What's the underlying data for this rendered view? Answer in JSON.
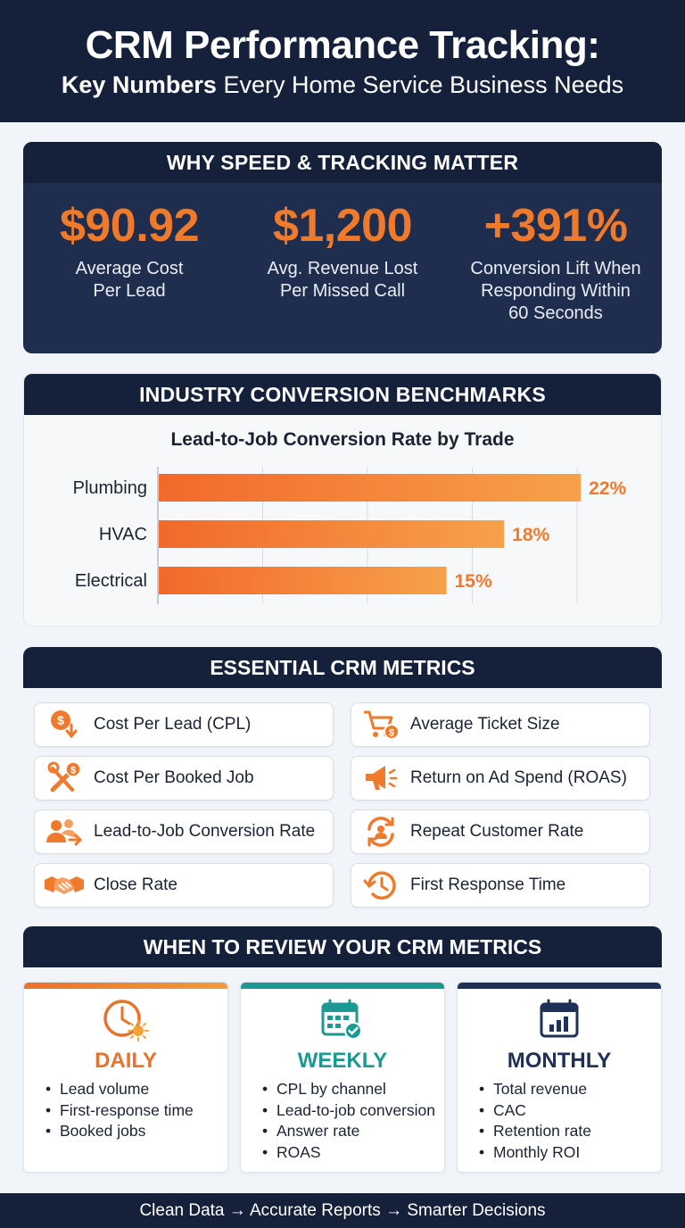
{
  "header": {
    "title": "CRM Performance Tracking:",
    "subtitle_bold": "Key Numbers",
    "subtitle_rest": " Every Home Service Business Needs"
  },
  "speed_section": {
    "title": "WHY SPEED & TRACKING MATTER",
    "stats": [
      {
        "value": "$90.92",
        "label_line1": "Average Cost",
        "label_line2": "Per Lead",
        "label_line3": ""
      },
      {
        "value": "$1,200",
        "label_line1": "Avg. Revenue Lost",
        "label_line2": "Per Missed Call",
        "label_line3": ""
      },
      {
        "value": "+391%",
        "label_line1": "Conversion Lift When",
        "label_line2": "Responding Within",
        "label_line3": "60 Seconds"
      }
    ]
  },
  "benchmark_section": {
    "title": "INDUSTRY CONVERSION BENCHMARKS"
  },
  "chart_data": {
    "type": "bar",
    "orientation": "horizontal",
    "title": "Lead-to-Job Conversion Rate by Trade",
    "categories": [
      "Plumbing",
      "HVAC",
      "Electrical"
    ],
    "values": [
      22,
      18,
      15
    ],
    "value_labels": [
      "22%",
      "18%",
      "15%"
    ],
    "unit": "%",
    "xlim": [
      0,
      25
    ],
    "grid": true,
    "bar_color": "#f07a2b"
  },
  "metrics_section": {
    "title": "ESSENTIAL CRM METRICS",
    "items": [
      {
        "label": "Cost Per Lead (CPL)",
        "icon": "dollar-down-icon"
      },
      {
        "label": "Average Ticket Size",
        "icon": "cart-dollar-icon"
      },
      {
        "label": "Cost Per Booked Job",
        "icon": "tools-dollar-icon"
      },
      {
        "label": "Return on Ad Spend (ROAS)",
        "icon": "megaphone-icon"
      },
      {
        "label": "Lead-to-Job Conversion Rate",
        "icon": "people-arrow-icon"
      },
      {
        "label": "Repeat Customer Rate",
        "icon": "repeat-person-icon"
      },
      {
        "label": "Close Rate",
        "icon": "handshake-icon"
      },
      {
        "label": "First Response Time",
        "icon": "clock-history-icon"
      }
    ]
  },
  "review_section": {
    "title": "WHEN TO REVIEW YOUR CRM METRICS",
    "cards": [
      {
        "heading": "DAILY",
        "color": "#e8732a",
        "icon": "clock-sun-icon",
        "items": [
          "Lead volume",
          "First-response time",
          "Booked jobs"
        ]
      },
      {
        "heading": "WEEKLY",
        "color": "#1b9a93",
        "icon": "calendar-check-icon",
        "items": [
          "CPL by channel",
          "Lead-to-job conversion",
          "Answer rate",
          "ROAS"
        ]
      },
      {
        "heading": "MONTHLY",
        "color": "#1f3057",
        "icon": "calendar-chart-icon",
        "items": [
          "Total revenue",
          "CAC",
          "Retention rate",
          "Monthly ROI"
        ]
      }
    ]
  },
  "footer": {
    "text": "Clean Data → Accurate Reports → Smarter Decisions"
  },
  "colors": {
    "navy": "#15213b",
    "orange": "#f07a2b",
    "teal": "#1b9a93"
  }
}
